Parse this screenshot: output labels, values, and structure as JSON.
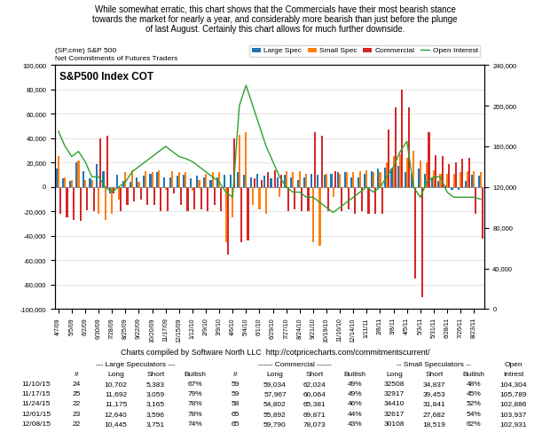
{
  "chart_data": {
    "type": "bar",
    "title": "S&P500 Index COT",
    "subtitle": "While somewhat erratic, this chart shows that the Commercials have their most bearish stance\ntowards the market for nearly a year, and considerably more bearish than just before the plunge\nof last August. Certainly this chart allows for much further downside.",
    "annotations": [
      "(SP,cme) S&P 500",
      "Net Commitments of Futures Traders",
      "Charts compiled by Software North LLC  http://cotpricecharts.com/commitmentscurrent/"
    ],
    "categories": [
      "4/7/09",
      null,
      "5/5/09",
      null,
      "6/2/09",
      null,
      "6/30/09",
      null,
      "7/28/09",
      null,
      "8/25/09",
      null,
      "9/22/09",
      null,
      "10/20/09",
      null,
      "11/17/09",
      null,
      "12/15/09",
      null,
      "1/12/10",
      null,
      "2/9/10",
      null,
      "3/9/10",
      null,
      "4/6/10",
      null,
      "5/4/10",
      null,
      "6/1/10",
      null,
      "6/29/10",
      null,
      "7/27/10",
      null,
      "8/24/10",
      null,
      "9/21/10",
      null,
      "10/19/10",
      null,
      "11/16/10",
      null,
      "12/14/10",
      null,
      "1/11/11",
      null,
      "2/8/11",
      null,
      "3/8/11",
      null,
      "4/5/11",
      null,
      "5/3/11",
      null,
      "5/31/11",
      null,
      "6/28/11",
      null,
      "7/26/11",
      null,
      "8/23/11",
      null
    ],
    "series": [
      {
        "name": "Large Spec",
        "type": "bar",
        "color": "#1f77b4",
        "values": [
          15000,
          7000,
          5000,
          20000,
          13000,
          7000,
          19000,
          13000,
          -5000,
          10000,
          5000,
          4000,
          8000,
          9000,
          11000,
          12000,
          8000,
          8000,
          9000,
          10000,
          7000,
          9000,
          8000,
          6000,
          8000,
          10000,
          10000,
          12000,
          10000,
          8000,
          11000,
          9000,
          7000,
          8000,
          10000,
          8000,
          6000,
          8000,
          11000,
          10000,
          10000,
          11000,
          12000,
          12000,
          8000,
          8000,
          11000,
          13000,
          15000,
          16000,
          15000,
          17000,
          12000,
          11000,
          15000,
          11000,
          8000,
          5000,
          1000,
          -2000,
          -2000,
          5000,
          10000,
          9000
        ]
      },
      {
        "name": "Small Spec",
        "type": "bar",
        "color": "#ff7f0e",
        "values": [
          25000,
          8000,
          6000,
          22000,
          6000,
          6000,
          -22000,
          -27000,
          -22000,
          -10000,
          12000,
          14000,
          4000,
          13000,
          12000,
          14000,
          -2000,
          13000,
          12000,
          12000,
          -3000,
          6000,
          11000,
          12000,
          12000,
          -45000,
          -25000,
          43000,
          45000,
          -15000,
          -18000,
          -22000,
          0,
          -8000,
          13000,
          12000,
          13000,
          11000,
          -45000,
          -48000,
          11000,
          -8000,
          11000,
          12000,
          12000,
          13000,
          14000,
          12000,
          12000,
          20000,
          25000,
          27000,
          24000,
          30000,
          22000,
          20000,
          14000,
          11000,
          11000,
          11000,
          12000,
          13000,
          13000,
          12000
        ]
      },
      {
        "name": "Commercial",
        "type": "bar",
        "color": "#d62728",
        "values": [
          -22000,
          -25000,
          -27000,
          -28000,
          -19000,
          -20000,
          40000,
          42000,
          -5000,
          -20000,
          -15000,
          -12000,
          -10000,
          -15000,
          -15000,
          -20000,
          -20000,
          -5000,
          -15000,
          -20000,
          -18000,
          -18000,
          -20000,
          -15000,
          -20000,
          -55000,
          40000,
          -45000,
          -44000,
          7000,
          6000,
          12000,
          14000,
          10000,
          -20000,
          -18000,
          -20000,
          -20000,
          45000,
          42000,
          -20000,
          13000,
          -20000,
          -18000,
          -22000,
          -20000,
          -22000,
          -22000,
          -22000,
          47000,
          65000,
          80000,
          65000,
          -75000,
          -90000,
          45000,
          26000,
          25000,
          19000,
          20000,
          23000,
          24000,
          -22000,
          -42000
        ]
      },
      {
        "name": "Open Interest",
        "type": "line",
        "axis": "y2",
        "color": "#2ca02c",
        "values": [
          175000,
          160000,
          150000,
          155000,
          145000,
          130000,
          130000,
          120000,
          115000,
          120000,
          125000,
          135000,
          140000,
          145000,
          150000,
          155000,
          160000,
          155000,
          150000,
          148000,
          145000,
          140000,
          135000,
          130000,
          125000,
          115000,
          110000,
          200000,
          220000,
          200000,
          180000,
          160000,
          145000,
          130000,
          120000,
          115000,
          115000,
          110000,
          110000,
          105000,
          100000,
          95000,
          100000,
          105000,
          110000,
          115000,
          120000,
          115000,
          120000,
          130000,
          140000,
          155000,
          165000,
          120000,
          110000,
          125000,
          130000,
          130000,
          115000,
          110000,
          110000,
          110000,
          110000,
          108000
        ]
      }
    ],
    "ylim": [
      -100000,
      100000
    ],
    "yticks": [
      {
        "value": -100000,
        "label": "-100,000"
      },
      {
        "value": -80000,
        "label": "-80,000"
      },
      {
        "value": -60000,
        "label": "-60,000"
      },
      {
        "value": -40000,
        "label": "-40,000"
      },
      {
        "value": -20000,
        "label": "-20,000"
      },
      0,
      {
        "value": 20000,
        "label": "20,000"
      },
      {
        "value": 40000,
        "label": "40,000"
      },
      {
        "value": 60000,
        "label": "60,000"
      },
      {
        "value": 80000,
        "label": "80,000"
      },
      {
        "value": 100000,
        "label": "100,000"
      }
    ],
    "y2lim": [
      0,
      240000
    ],
    "y2ticks": [
      0,
      {
        "value": 40000,
        "label": "40,000"
      },
      {
        "value": 80000,
        "label": "80,000"
      },
      {
        "value": 120000,
        "label": "120,000"
      },
      {
        "value": 160000,
        "label": "160,000"
      },
      {
        "value": 200000,
        "label": "200,000"
      },
      {
        "value": 240000,
        "label": "240,000"
      }
    ],
    "grid": true,
    "legend": "upper right",
    "table": {
      "groups": [
        {
          "label": null,
          "span": 1
        },
        {
          "label": "--- Large Speculators ---",
          "span": 4
        },
        {
          "label": "------ Commercial ------",
          "span": 4
        },
        {
          "label": "-- Small Speculators --",
          "span": 3
        },
        {
          "label": "Open",
          "span": 1
        }
      ],
      "columns": [
        null,
        "#",
        "Long",
        "Short",
        "Bullish",
        "#",
        "Long",
        "Short",
        "Bullish",
        "Long",
        "Short",
        "Bullish",
        "Intrest"
      ],
      "rows": [
        [
          "11/10/15",
          "24",
          "10,702",
          "5,383",
          "67%",
          "59",
          "59,034",
          "62,024",
          "49%",
          "32508",
          "34,837",
          "48%",
          "104,304"
        ],
        [
          "11/17/15",
          "25",
          "11,692",
          "3,059",
          "79%",
          "59",
          "57,967",
          "60,064",
          "49%",
          "32917",
          "39,453",
          "45%",
          "105,789"
        ],
        [
          "11/24/15",
          "22",
          "11,175",
          "3,165",
          "78%",
          "58",
          "54,802",
          "65,381",
          "46%",
          "34410",
          "31,841",
          "52%",
          "102,886"
        ],
        [
          "12/01/15",
          "23",
          "12,640",
          "3,596",
          "78%",
          "65",
          "55,892",
          "69,871",
          "44%",
          "32617",
          "27,682",
          "54%",
          "103,937"
        ],
        [
          "12/08/15",
          "22",
          "10,445",
          "3,751",
          "74%",
          "65",
          "59,790",
          "78,073",
          "43%",
          "30108",
          "18,519",
          "62%",
          "102,931"
        ]
      ]
    }
  }
}
